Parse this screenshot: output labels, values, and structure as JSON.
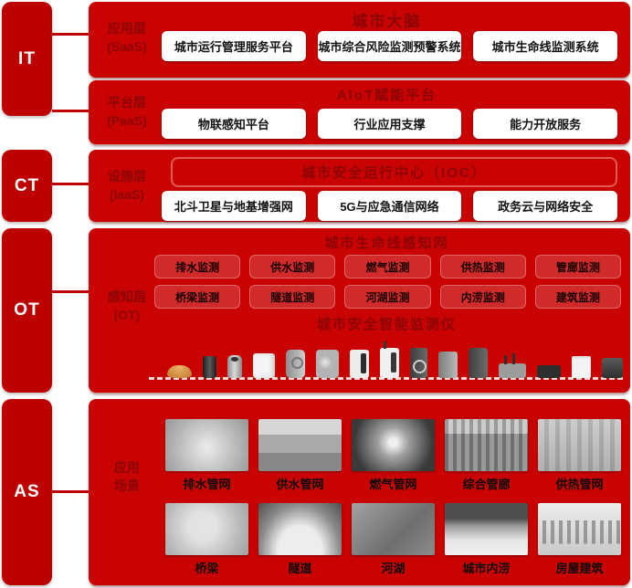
{
  "colors": {
    "panel_red": "#c90202",
    "spine_red": "#bd0101",
    "header_text_red": "#8c0505",
    "button_bg": "#ffffff",
    "button_text": "#121212",
    "sensor_orange": "#cf8a3e"
  },
  "spine": [
    {
      "label": "IT"
    },
    {
      "label": "CT"
    },
    {
      "label": "OT"
    },
    {
      "label": "AS"
    }
  ],
  "panels": {
    "saas": {
      "side_label": "应用层",
      "side_sub": "(SaaS)",
      "title": "城市大脑",
      "items": [
        "城市运行管理服务平台",
        "城市综合风险监测预警系统",
        "城市生命线监测系统"
      ]
    },
    "paas": {
      "side_label": "平台层",
      "side_sub": "(PaaS)",
      "title": "AIoT赋能平台",
      "items": [
        "物联感知平台",
        "行业应用支撑",
        "能力开放服务"
      ]
    },
    "iaas": {
      "side_label": "设施层",
      "side_sub": "(IaaS)",
      "title": "城市安全运行中心（IOC）",
      "items": [
        "北斗卫星与地基增强网",
        "5G与应急通信网络",
        "政务云与网络安全"
      ]
    },
    "ot": {
      "side_label": "感知层",
      "side_sub": "(OT)",
      "sensing_title": "城市生命线感知网",
      "monitor_items": [
        "排水监测",
        "供水监测",
        "燃气监测",
        "供热监测",
        "管廊监测",
        "桥梁监测",
        "隧道监测",
        "河湖监测",
        "内涝监测",
        "建筑监测"
      ],
      "device_title": "城市安全智能监测仪",
      "device_icons": [
        "dome-sensor-icon",
        "black-cylinder-sensor-icon",
        "gray-cylinder-sensor-icon",
        "white-box-sensor-icon",
        "round-emblem-sensor-icon",
        "disc-sensor-icon",
        "slot-panel-sensor-icon",
        "antenna-box-sensor-icon",
        "dial-monitor-icon",
        "gray-box-monitor-icon",
        "dark-tower-monitor-icon",
        "wifi-router-icon",
        "flat-reader-icon",
        "white-cube-sensor-icon",
        "dark-cube-sensor-icon"
      ]
    },
    "as": {
      "side_label": "应用",
      "side_sub": "场景",
      "scenes": [
        {
          "caption": "排水管网"
        },
        {
          "caption": "供水管网"
        },
        {
          "caption": "燃气管网"
        },
        {
          "caption": "综合管廊"
        },
        {
          "caption": "供热管网"
        },
        {
          "caption": "桥梁"
        },
        {
          "caption": "隧道"
        },
        {
          "caption": "河湖"
        },
        {
          "caption": "城市内涝"
        },
        {
          "caption": "房屋建筑"
        }
      ]
    }
  }
}
